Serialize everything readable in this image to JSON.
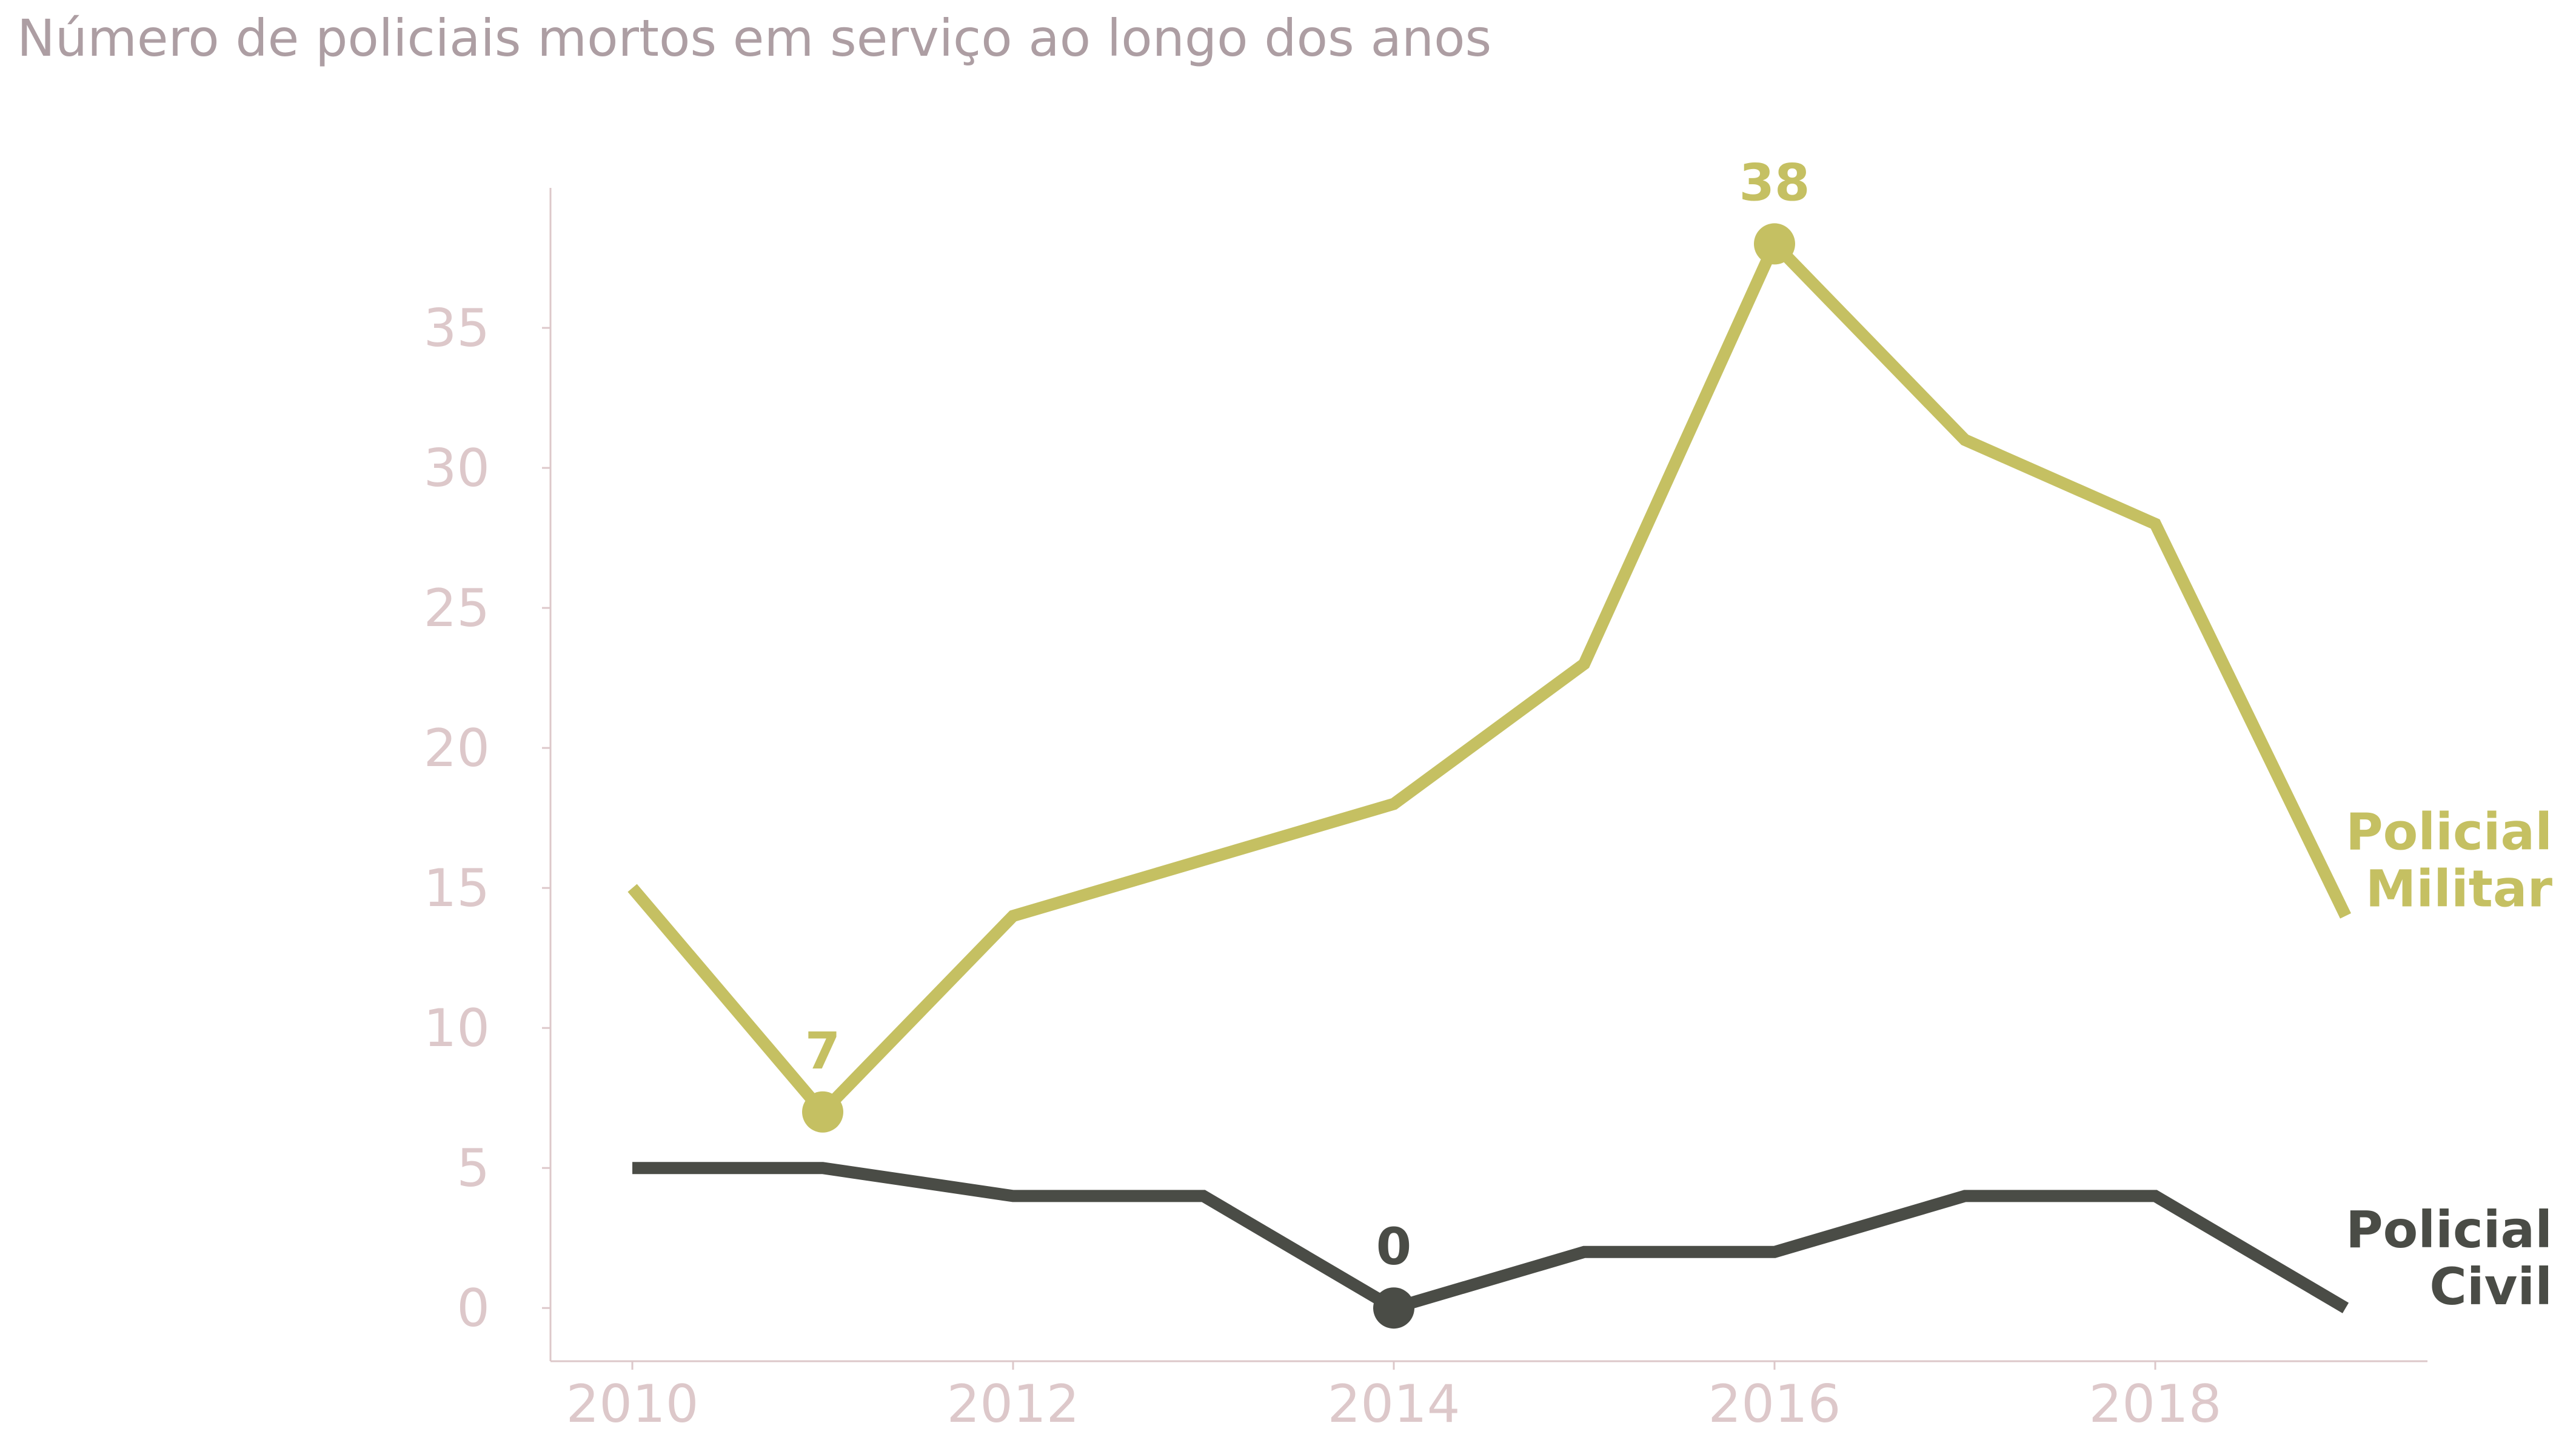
{
  "chart_data": {
    "type": "line",
    "title": "Número de policiais mortos em serviço ao longo dos anos",
    "xlabel": "",
    "ylabel": "",
    "x": [
      2010,
      2011,
      2012,
      2013,
      2014,
      2015,
      2016,
      2017,
      2018,
      2019
    ],
    "xlim": [
      2009.57,
      2019.43
    ],
    "ylim": [
      -1.9,
      40
    ],
    "xticks": [
      2010,
      2012,
      2014,
      2016,
      2018
    ],
    "xtick_labels": [
      "2010",
      "2012",
      "2014",
      "2016",
      "2018"
    ],
    "yticks": [
      0,
      5,
      10,
      15,
      20,
      25,
      30,
      35
    ],
    "ytick_labels": [
      "0",
      "5",
      "10",
      "15",
      "20",
      "25",
      "30",
      "35"
    ],
    "grid": false,
    "series": [
      {
        "name": "Policial Militar",
        "label_lines": [
          "Policial",
          "Militar"
        ],
        "color": "#c5c062",
        "values": [
          15,
          7,
          14,
          16,
          18,
          23,
          38,
          31,
          28,
          14
        ],
        "highlights": [
          {
            "x": 2011,
            "y": 7,
            "label": "7"
          },
          {
            "x": 2016,
            "y": 38,
            "label": "38"
          }
        ]
      },
      {
        "name": "Policial Civil",
        "label_lines": [
          "Policial",
          "Civil"
        ],
        "color": "#4a4c46",
        "values": [
          5,
          5,
          4,
          4,
          0,
          2,
          2,
          4,
          4,
          0
        ],
        "highlights": [
          {
            "x": 2014,
            "y": 0,
            "label": "0"
          }
        ]
      }
    ],
    "axis_color": "#ddc8ca"
  }
}
